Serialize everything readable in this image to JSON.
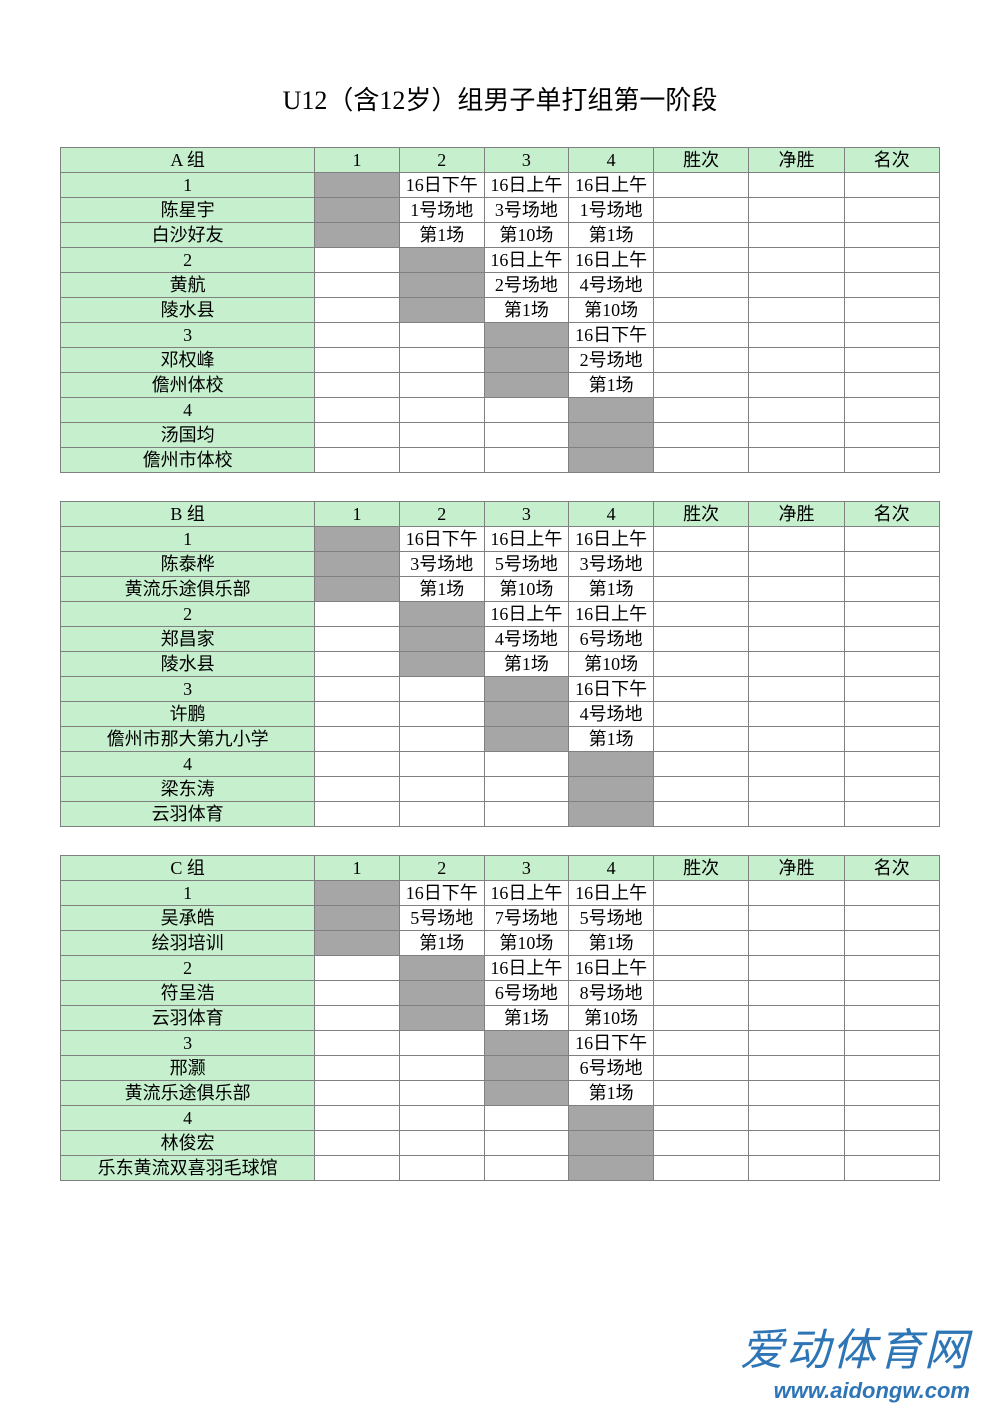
{
  "title": "U12（含12岁）组男子单打组第一阶段",
  "colors": {
    "header_bg": "#c6efce",
    "grey_bg": "#a6a6a6",
    "border": "#808080",
    "text": "#000000",
    "watermark": "#2e75b6"
  },
  "columns": {
    "match_cols": [
      "1",
      "2",
      "3",
      "4"
    ],
    "stat_cols": [
      "胜次",
      "净胜",
      "名次"
    ]
  },
  "groups": [
    {
      "name": "A 组",
      "players": [
        {
          "num": "1",
          "name": "陈星宇",
          "club": "白沙好友",
          "cells": [
            null,
            [
              "16日下午",
              "1号场地",
              "第1场"
            ],
            [
              "16日上午",
              "3号场地",
              "第10场"
            ],
            [
              "16日上午",
              "1号场地",
              "第1场"
            ]
          ]
        },
        {
          "num": "2",
          "name": "黄航",
          "club": "陵水县",
          "cells": [
            null,
            null,
            [
              "16日上午",
              "2号场地",
              "第1场"
            ],
            [
              "16日上午",
              "4号场地",
              "第10场"
            ]
          ]
        },
        {
          "num": "3",
          "name": "邓权峰",
          "club": "儋州体校",
          "cells": [
            null,
            null,
            null,
            [
              "16日下午",
              "2号场地",
              "第1场"
            ]
          ]
        },
        {
          "num": "4",
          "name": "汤国均",
          "club": "儋州市体校",
          "cells": [
            null,
            null,
            null,
            null
          ]
        }
      ]
    },
    {
      "name": "B 组",
      "players": [
        {
          "num": "1",
          "name": "陈泰桦",
          "club": "黄流乐途俱乐部",
          "cells": [
            null,
            [
              "16日下午",
              "3号场地",
              "第1场"
            ],
            [
              "16日上午",
              "5号场地",
              "第10场"
            ],
            [
              "16日上午",
              "3号场地",
              "第1场"
            ]
          ]
        },
        {
          "num": "2",
          "name": "郑昌家",
          "club": "陵水县",
          "cells": [
            null,
            null,
            [
              "16日上午",
              "4号场地",
              "第1场"
            ],
            [
              "16日上午",
              "6号场地",
              "第10场"
            ]
          ]
        },
        {
          "num": "3",
          "name": "许鹏",
          "club": "儋州市那大第九小学",
          "cells": [
            null,
            null,
            null,
            [
              "16日下午",
              "4号场地",
              "第1场"
            ]
          ]
        },
        {
          "num": "4",
          "name": "梁东涛",
          "club": "云羽体育",
          "cells": [
            null,
            null,
            null,
            null
          ]
        }
      ]
    },
    {
      "name": "C 组",
      "players": [
        {
          "num": "1",
          "name": "吴承皓",
          "club": "绘羽培训",
          "cells": [
            null,
            [
              "16日下午",
              "5号场地",
              "第1场"
            ],
            [
              "16日上午",
              "7号场地",
              "第10场"
            ],
            [
              "16日上午",
              "5号场地",
              "第1场"
            ]
          ]
        },
        {
          "num": "2",
          "name": "符呈浩",
          "club": "云羽体育",
          "cells": [
            null,
            null,
            [
              "16日上午",
              "6号场地",
              "第1场"
            ],
            [
              "16日上午",
              "8号场地",
              "第10场"
            ]
          ]
        },
        {
          "num": "3",
          "name": "邢灏",
          "club": "黄流乐途俱乐部",
          "cells": [
            null,
            null,
            null,
            [
              "16日下午",
              "6号场地",
              "第1场"
            ]
          ]
        },
        {
          "num": "4",
          "name": "林俊宏",
          "club": "乐东黄流双喜羽毛球馆",
          "cells": [
            null,
            null,
            null,
            null
          ]
        }
      ]
    }
  ],
  "watermark": {
    "cn": "爱动体育网",
    "url": "www.aidongw.com"
  }
}
